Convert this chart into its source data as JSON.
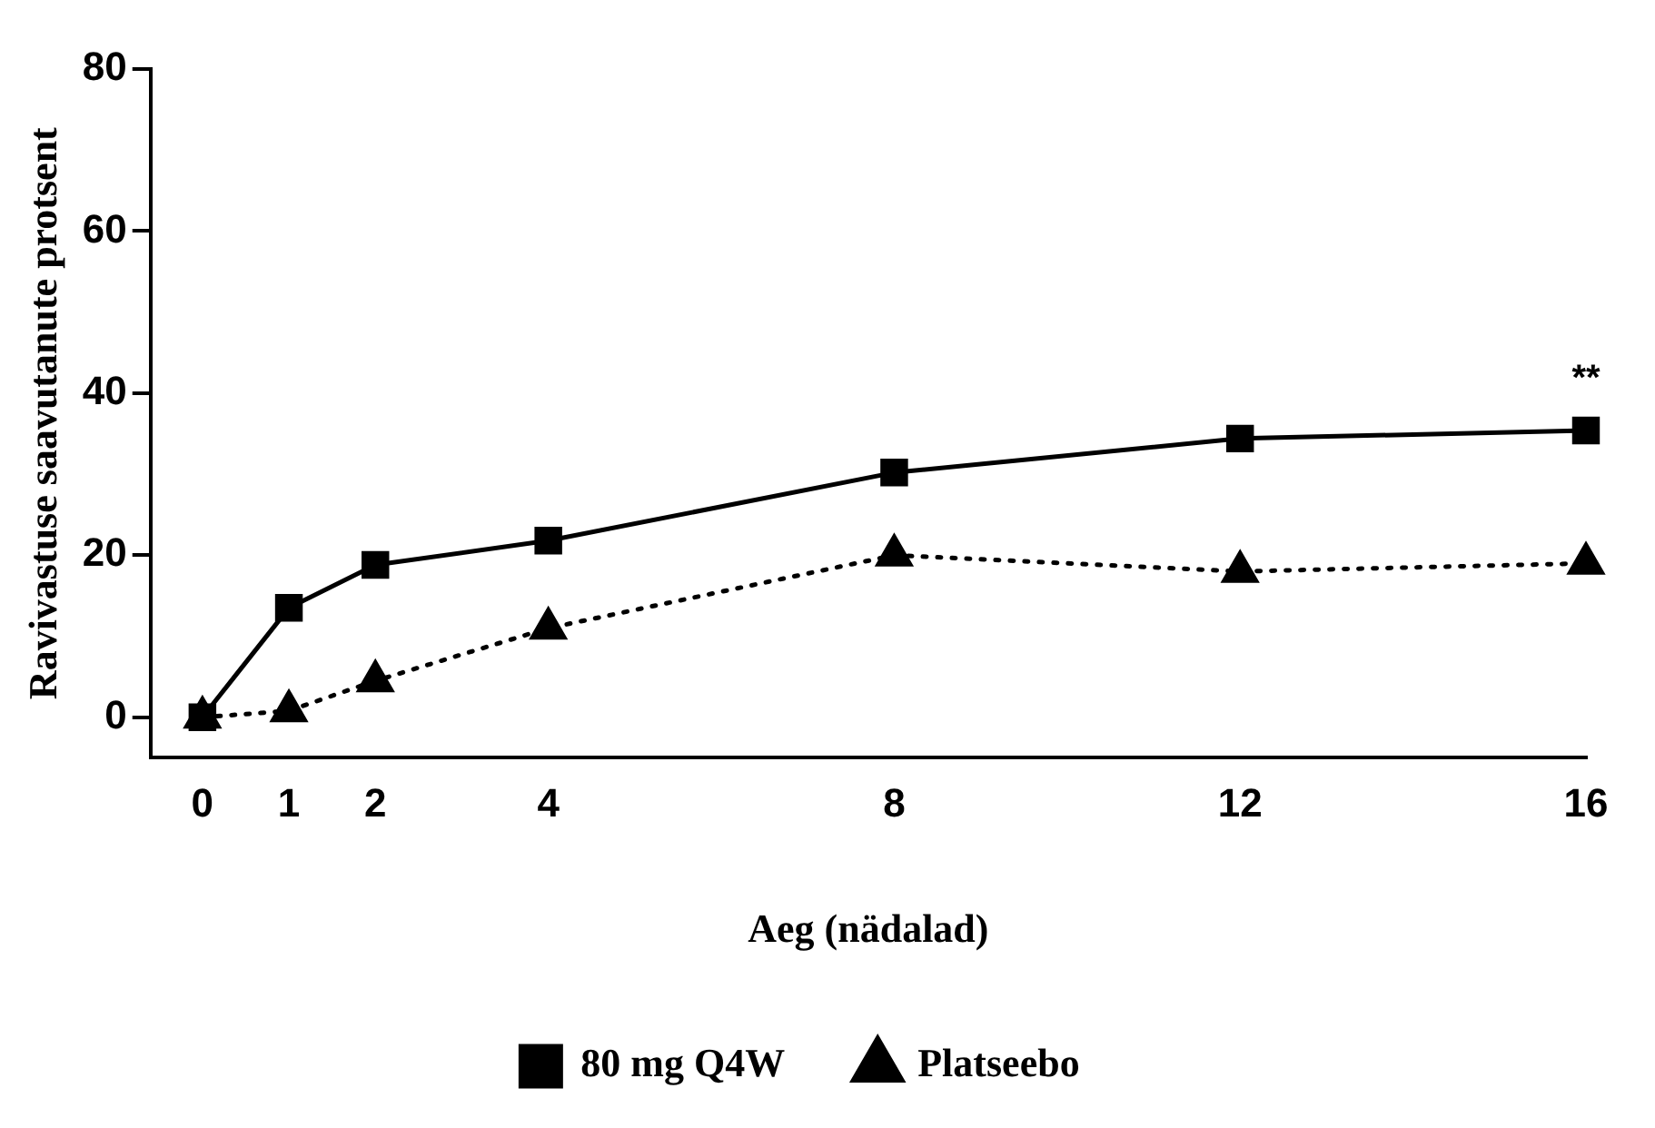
{
  "chart_data": {
    "type": "line",
    "xlabel": "Aeg (nädalad)",
    "ylabel": "Ravivastuse saavutanute protsent",
    "x": [
      0,
      1,
      2,
      4,
      8,
      12,
      16
    ],
    "series": [
      {
        "name": "80 mg Q4W",
        "color": "#000000",
        "values": [
          0,
          13.5,
          18.8,
          21.8,
          30.2,
          34.4,
          35.4
        ],
        "marker": "square",
        "line_style": "solid"
      },
      {
        "name": "Platseebo",
        "color": "#000000",
        "values": [
          0,
          0.8,
          4.5,
          11,
          20,
          18,
          19
        ],
        "marker": "triangle",
        "line_style": "dotted"
      }
    ],
    "xlim": [
      -0.6,
      16
    ],
    "xticks": [
      0,
      1,
      2,
      4,
      8,
      12,
      16
    ],
    "ylim": [
      -5,
      80
    ],
    "yticks": [
      0,
      20,
      40,
      60,
      80
    ],
    "grid": false,
    "legend": "bottom",
    "annotations": [
      {
        "text": "**",
        "x": 16,
        "y": 35.4
      }
    ]
  }
}
